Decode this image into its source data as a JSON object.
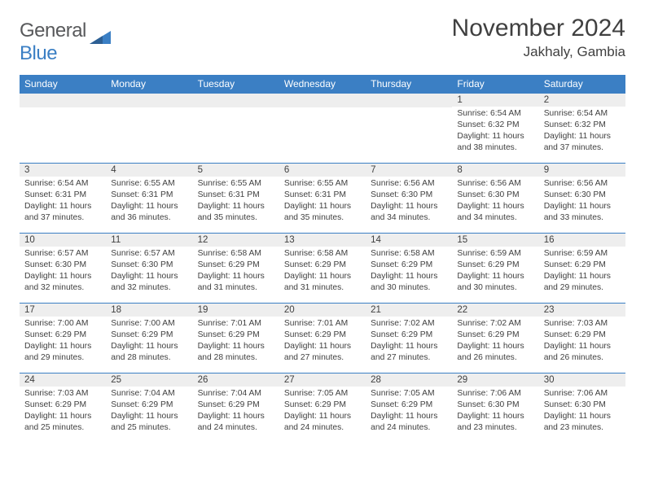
{
  "logo": {
    "text1": "General",
    "text2": "Blue"
  },
  "title": "November 2024",
  "location": "Jakhaly, Gambia",
  "colors": {
    "header_bg": "#3b7fc4",
    "header_text": "#ffffff",
    "daynum_bg": "#eeeeee",
    "border": "#3b7fc4",
    "text": "#404040"
  },
  "day_names": [
    "Sunday",
    "Monday",
    "Tuesday",
    "Wednesday",
    "Thursday",
    "Friday",
    "Saturday"
  ],
  "weeks": [
    [
      {
        "n": "",
        "lines": []
      },
      {
        "n": "",
        "lines": []
      },
      {
        "n": "",
        "lines": []
      },
      {
        "n": "",
        "lines": []
      },
      {
        "n": "",
        "lines": []
      },
      {
        "n": "1",
        "lines": [
          "Sunrise: 6:54 AM",
          "Sunset: 6:32 PM",
          "Daylight: 11 hours and 38 minutes."
        ]
      },
      {
        "n": "2",
        "lines": [
          "Sunrise: 6:54 AM",
          "Sunset: 6:32 PM",
          "Daylight: 11 hours and 37 minutes."
        ]
      }
    ],
    [
      {
        "n": "3",
        "lines": [
          "Sunrise: 6:54 AM",
          "Sunset: 6:31 PM",
          "Daylight: 11 hours and 37 minutes."
        ]
      },
      {
        "n": "4",
        "lines": [
          "Sunrise: 6:55 AM",
          "Sunset: 6:31 PM",
          "Daylight: 11 hours and 36 minutes."
        ]
      },
      {
        "n": "5",
        "lines": [
          "Sunrise: 6:55 AM",
          "Sunset: 6:31 PM",
          "Daylight: 11 hours and 35 minutes."
        ]
      },
      {
        "n": "6",
        "lines": [
          "Sunrise: 6:55 AM",
          "Sunset: 6:31 PM",
          "Daylight: 11 hours and 35 minutes."
        ]
      },
      {
        "n": "7",
        "lines": [
          "Sunrise: 6:56 AM",
          "Sunset: 6:30 PM",
          "Daylight: 11 hours and 34 minutes."
        ]
      },
      {
        "n": "8",
        "lines": [
          "Sunrise: 6:56 AM",
          "Sunset: 6:30 PM",
          "Daylight: 11 hours and 34 minutes."
        ]
      },
      {
        "n": "9",
        "lines": [
          "Sunrise: 6:56 AM",
          "Sunset: 6:30 PM",
          "Daylight: 11 hours and 33 minutes."
        ]
      }
    ],
    [
      {
        "n": "10",
        "lines": [
          "Sunrise: 6:57 AM",
          "Sunset: 6:30 PM",
          "Daylight: 11 hours and 32 minutes."
        ]
      },
      {
        "n": "11",
        "lines": [
          "Sunrise: 6:57 AM",
          "Sunset: 6:30 PM",
          "Daylight: 11 hours and 32 minutes."
        ]
      },
      {
        "n": "12",
        "lines": [
          "Sunrise: 6:58 AM",
          "Sunset: 6:29 PM",
          "Daylight: 11 hours and 31 minutes."
        ]
      },
      {
        "n": "13",
        "lines": [
          "Sunrise: 6:58 AM",
          "Sunset: 6:29 PM",
          "Daylight: 11 hours and 31 minutes."
        ]
      },
      {
        "n": "14",
        "lines": [
          "Sunrise: 6:58 AM",
          "Sunset: 6:29 PM",
          "Daylight: 11 hours and 30 minutes."
        ]
      },
      {
        "n": "15",
        "lines": [
          "Sunrise: 6:59 AM",
          "Sunset: 6:29 PM",
          "Daylight: 11 hours and 30 minutes."
        ]
      },
      {
        "n": "16",
        "lines": [
          "Sunrise: 6:59 AM",
          "Sunset: 6:29 PM",
          "Daylight: 11 hours and 29 minutes."
        ]
      }
    ],
    [
      {
        "n": "17",
        "lines": [
          "Sunrise: 7:00 AM",
          "Sunset: 6:29 PM",
          "Daylight: 11 hours and 29 minutes."
        ]
      },
      {
        "n": "18",
        "lines": [
          "Sunrise: 7:00 AM",
          "Sunset: 6:29 PM",
          "Daylight: 11 hours and 28 minutes."
        ]
      },
      {
        "n": "19",
        "lines": [
          "Sunrise: 7:01 AM",
          "Sunset: 6:29 PM",
          "Daylight: 11 hours and 28 minutes."
        ]
      },
      {
        "n": "20",
        "lines": [
          "Sunrise: 7:01 AM",
          "Sunset: 6:29 PM",
          "Daylight: 11 hours and 27 minutes."
        ]
      },
      {
        "n": "21",
        "lines": [
          "Sunrise: 7:02 AM",
          "Sunset: 6:29 PM",
          "Daylight: 11 hours and 27 minutes."
        ]
      },
      {
        "n": "22",
        "lines": [
          "Sunrise: 7:02 AM",
          "Sunset: 6:29 PM",
          "Daylight: 11 hours and 26 minutes."
        ]
      },
      {
        "n": "23",
        "lines": [
          "Sunrise: 7:03 AM",
          "Sunset: 6:29 PM",
          "Daylight: 11 hours and 26 minutes."
        ]
      }
    ],
    [
      {
        "n": "24",
        "lines": [
          "Sunrise: 7:03 AM",
          "Sunset: 6:29 PM",
          "Daylight: 11 hours and 25 minutes."
        ]
      },
      {
        "n": "25",
        "lines": [
          "Sunrise: 7:04 AM",
          "Sunset: 6:29 PM",
          "Daylight: 11 hours and 25 minutes."
        ]
      },
      {
        "n": "26",
        "lines": [
          "Sunrise: 7:04 AM",
          "Sunset: 6:29 PM",
          "Daylight: 11 hours and 24 minutes."
        ]
      },
      {
        "n": "27",
        "lines": [
          "Sunrise: 7:05 AM",
          "Sunset: 6:29 PM",
          "Daylight: 11 hours and 24 minutes."
        ]
      },
      {
        "n": "28",
        "lines": [
          "Sunrise: 7:05 AM",
          "Sunset: 6:29 PM",
          "Daylight: 11 hours and 24 minutes."
        ]
      },
      {
        "n": "29",
        "lines": [
          "Sunrise: 7:06 AM",
          "Sunset: 6:30 PM",
          "Daylight: 11 hours and 23 minutes."
        ]
      },
      {
        "n": "30",
        "lines": [
          "Sunrise: 7:06 AM",
          "Sunset: 6:30 PM",
          "Daylight: 11 hours and 23 minutes."
        ]
      }
    ]
  ]
}
